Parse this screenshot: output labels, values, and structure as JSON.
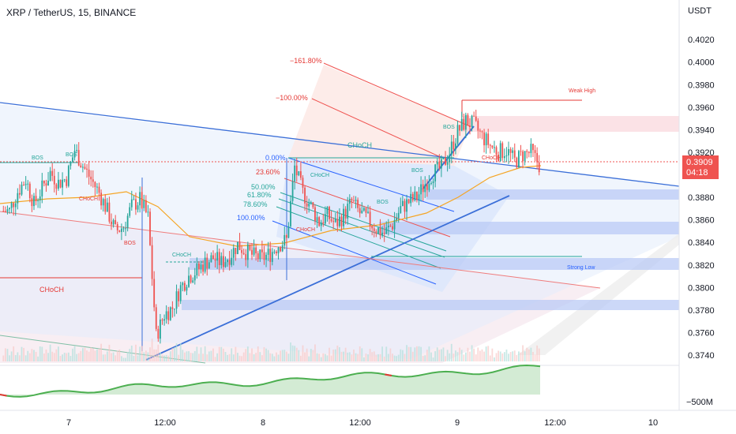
{
  "header": {
    "title": "XRP / TetherUS, 15, BINANCE"
  },
  "price_axis": {
    "currency": "USDT",
    "ticks": [
      "0.4020",
      "0.4000",
      "0.3980",
      "0.3960",
      "0.3940",
      "0.3920",
      "0.3900",
      "0.3880",
      "0.3860",
      "0.3840",
      "0.3820",
      "0.3800",
      "0.3780",
      "0.3760",
      "0.3740"
    ],
    "current_price": "0.3909",
    "countdown": "04:18",
    "indicator_label": "−500M"
  },
  "time_axis": {
    "ticks": [
      "7",
      "12:00",
      "8",
      "12:00",
      "9",
      "12:00",
      "10"
    ]
  },
  "fib_levels": [
    "−161.80%",
    "−100.00%",
    "0.00%",
    "23.60%",
    "50.00%",
    "61.80%",
    "78.60%",
    "100.00%"
  ],
  "annotations": {
    "choch": "CHoCH",
    "bos": "BOS",
    "weak_high": "Weak High",
    "strong_low": "Strong Low"
  },
  "colors": {
    "up": "#26a69a",
    "down": "#ef5350",
    "fib_blue": "#2962ff",
    "ma": "#f5a524",
    "osc_green": "#4caf50",
    "osc_red": "#e53935"
  },
  "chart_data": {
    "type": "candlestick",
    "symbol": "XRP / TetherUS",
    "interval": "15",
    "exchange": "BINANCE",
    "ylim": [
      0.3733,
      0.4032
    ],
    "last_price": 0.3909,
    "key_prices": {
      "weak_high": 0.3963,
      "strong_low": 0.3827,
      "session_low": 0.3738,
      "session_high": 0.3955
    },
    "series": [
      {
        "name": "price",
        "values": [
          0.3868,
          0.3885,
          0.3896,
          0.3874,
          0.3888,
          0.3902,
          0.3893,
          0.3897,
          0.3922,
          0.3908,
          0.3896,
          0.3884,
          0.3868,
          0.385,
          0.3854,
          0.3872,
          0.3878,
          0.3862,
          0.3757,
          0.3776,
          0.3782,
          0.38,
          0.381,
          0.3815,
          0.3822,
          0.3826,
          0.3822,
          0.3828,
          0.3838,
          0.3832,
          0.3828,
          0.3826,
          0.383,
          0.3838,
          0.3842,
          0.3907,
          0.3884,
          0.3872,
          0.3858,
          0.3864,
          0.3856,
          0.3864,
          0.3876,
          0.3866,
          0.386,
          0.3852,
          0.3848,
          0.3856,
          0.387,
          0.3876,
          0.388,
          0.3892,
          0.3902,
          0.3906,
          0.392,
          0.3938,
          0.3948,
          0.3944,
          0.3934,
          0.3926,
          0.392,
          0.3922,
          0.3912,
          0.3918,
          0.392,
          0.3909
        ]
      }
    ]
  }
}
